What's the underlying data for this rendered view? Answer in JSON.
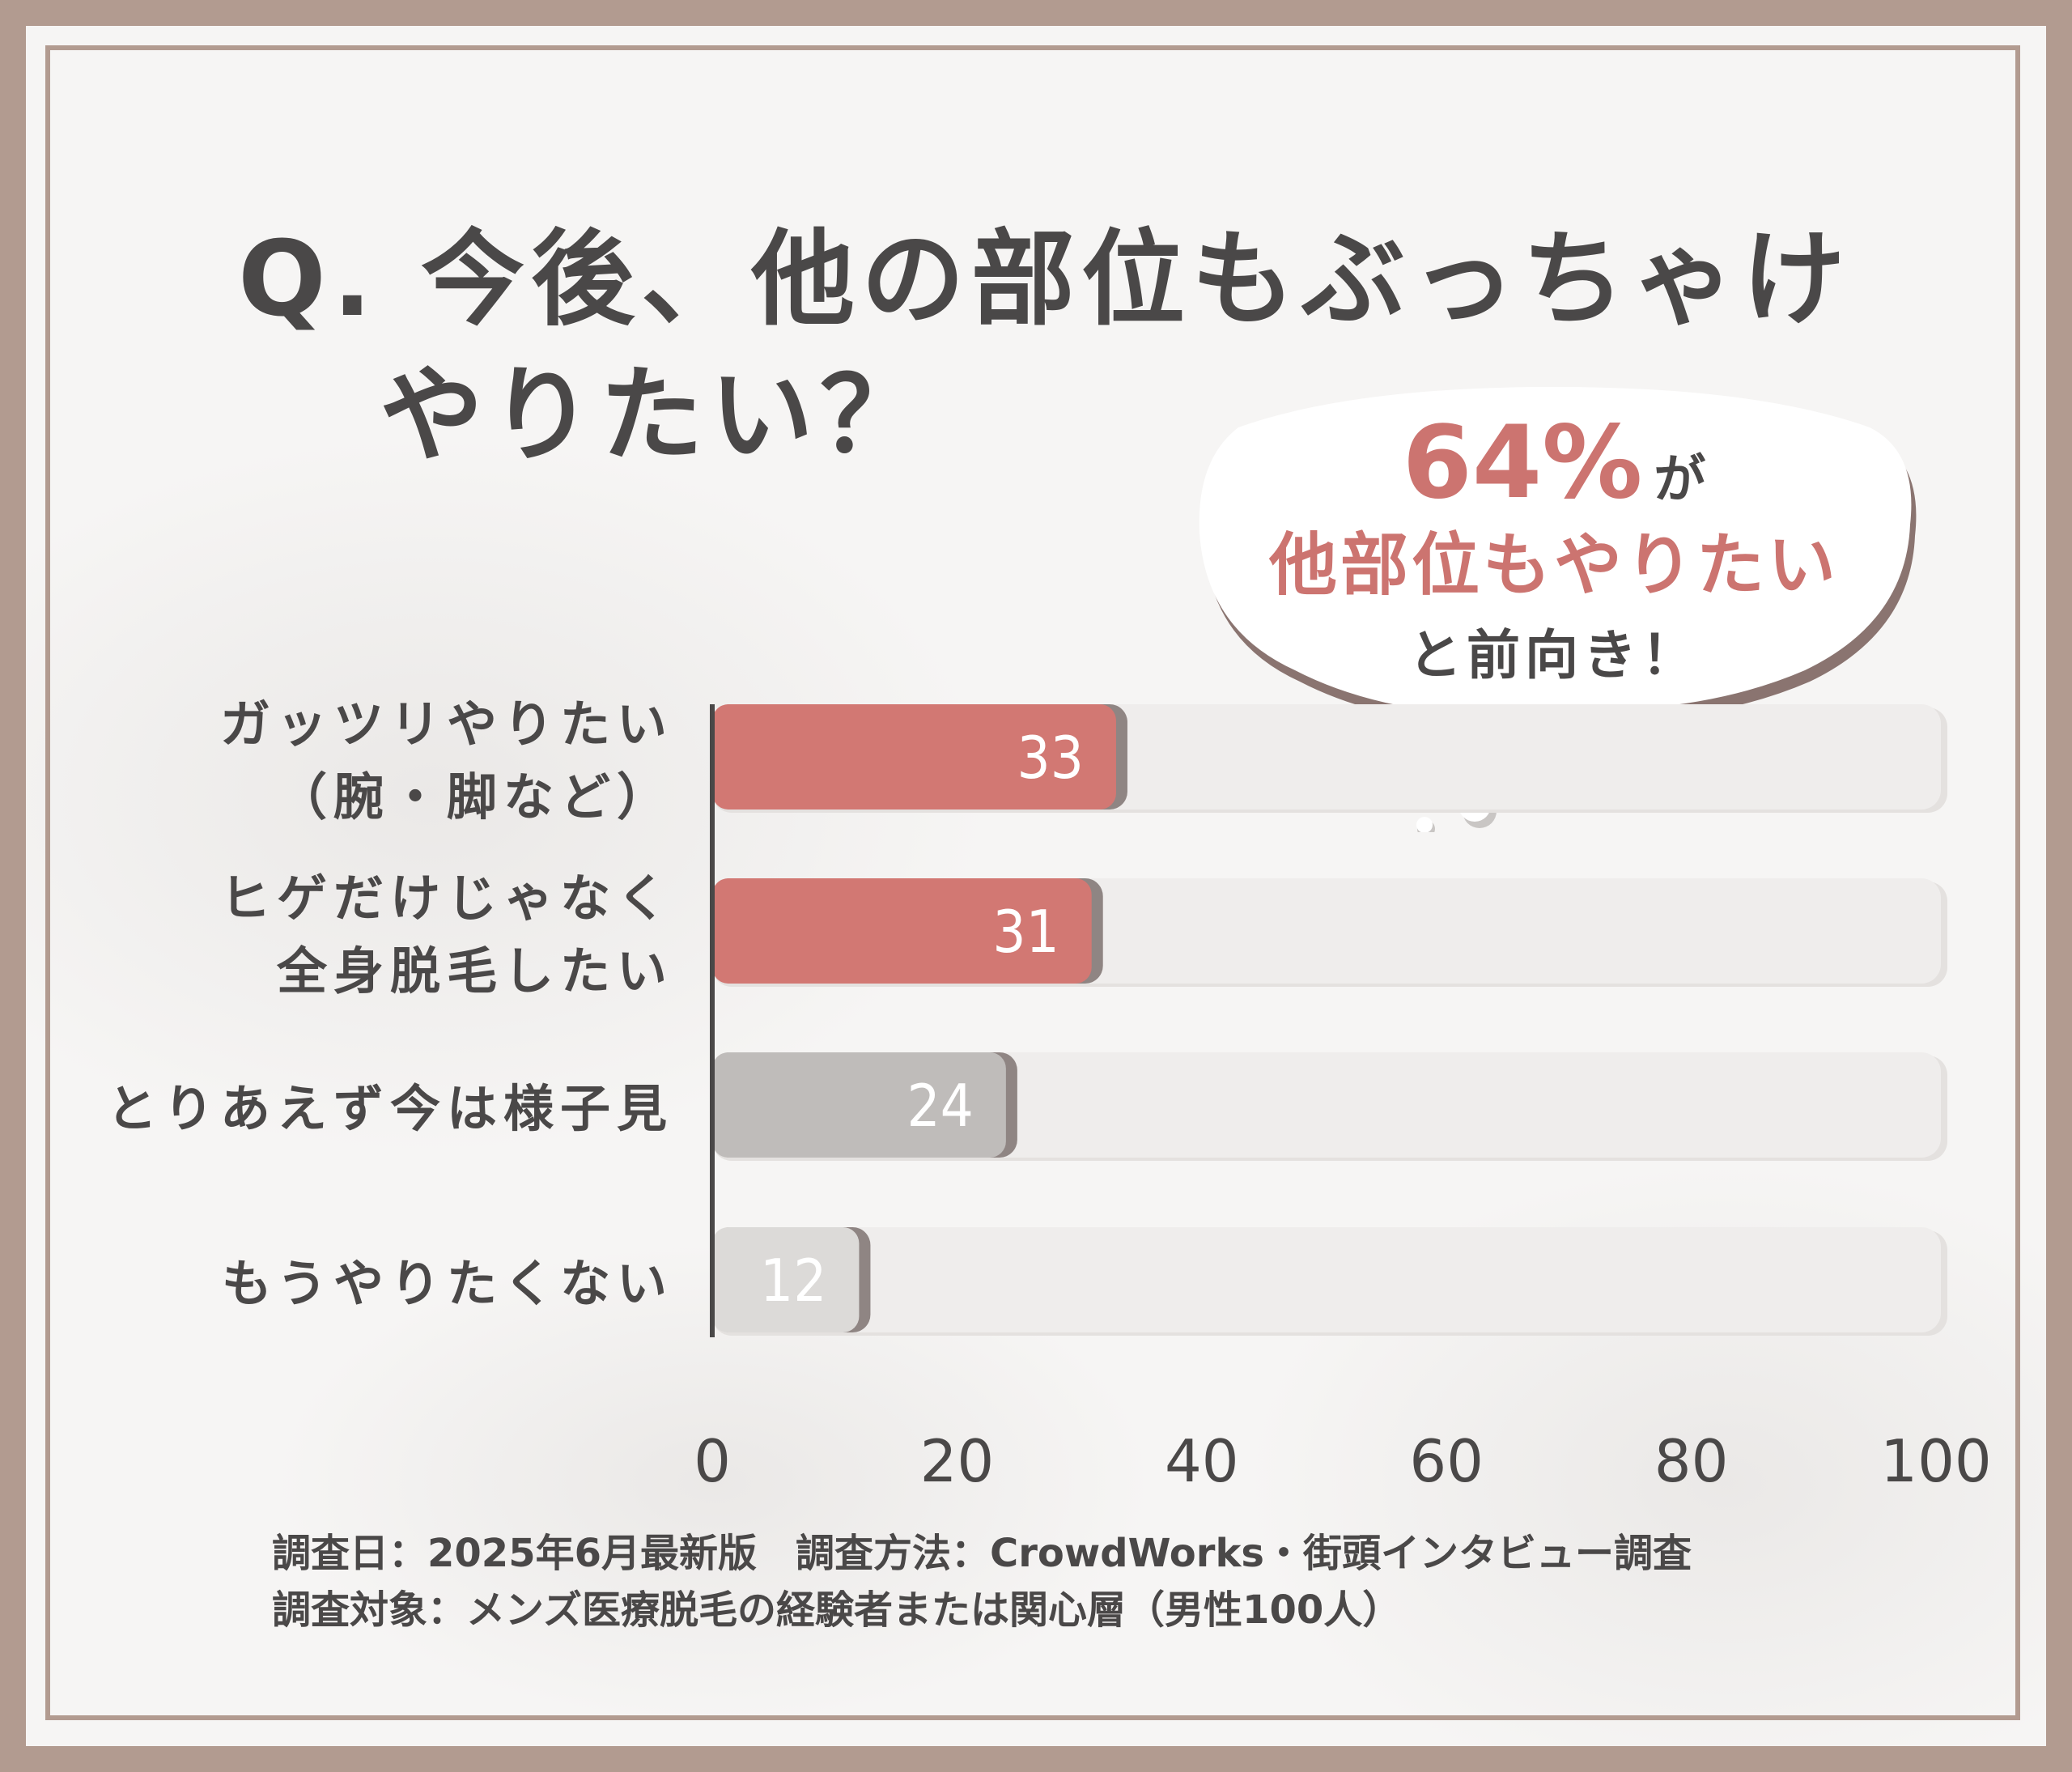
{
  "title": {
    "line1": "Q. 今後、他の部位もぶっちゃけ",
    "line2": "やりたい？"
  },
  "callout": {
    "percent": "64%",
    "ga": "が",
    "line2": "他部位もやりたい",
    "line3": "と前向き！"
  },
  "footer": {
    "line1": "調査日：2025年6月最新版　調査方法：CrowdWorks・街頭インタビュー調査",
    "line2": "調査対象：メンズ医療脱毛の経験者または関心層（男性100人）"
  },
  "colors": {
    "accent": "#d27873",
    "gray_dark": "#bfbcba",
    "gray_light": "#dcdad8",
    "track": "#efedec",
    "text": "#4a4848"
  },
  "chart_data": {
    "type": "bar",
    "orientation": "horizontal",
    "categories": [
      [
        "ガッツリやりたい",
        "（腕・脚など）"
      ],
      [
        "ヒゲだけじゃなく",
        "全身脱毛したい"
      ],
      [
        "とりあえず今は様子見"
      ],
      [
        "もうやりたくない"
      ]
    ],
    "values": [
      33,
      31,
      24,
      12
    ],
    "xlim": [
      0,
      100
    ],
    "xticks": [
      "0",
      "20",
      "40",
      "60",
      "80",
      "100"
    ],
    "bar_colors": [
      "#d27873",
      "#d27873",
      "#bfbcba",
      "#dcdad8"
    ],
    "grid": false
  }
}
